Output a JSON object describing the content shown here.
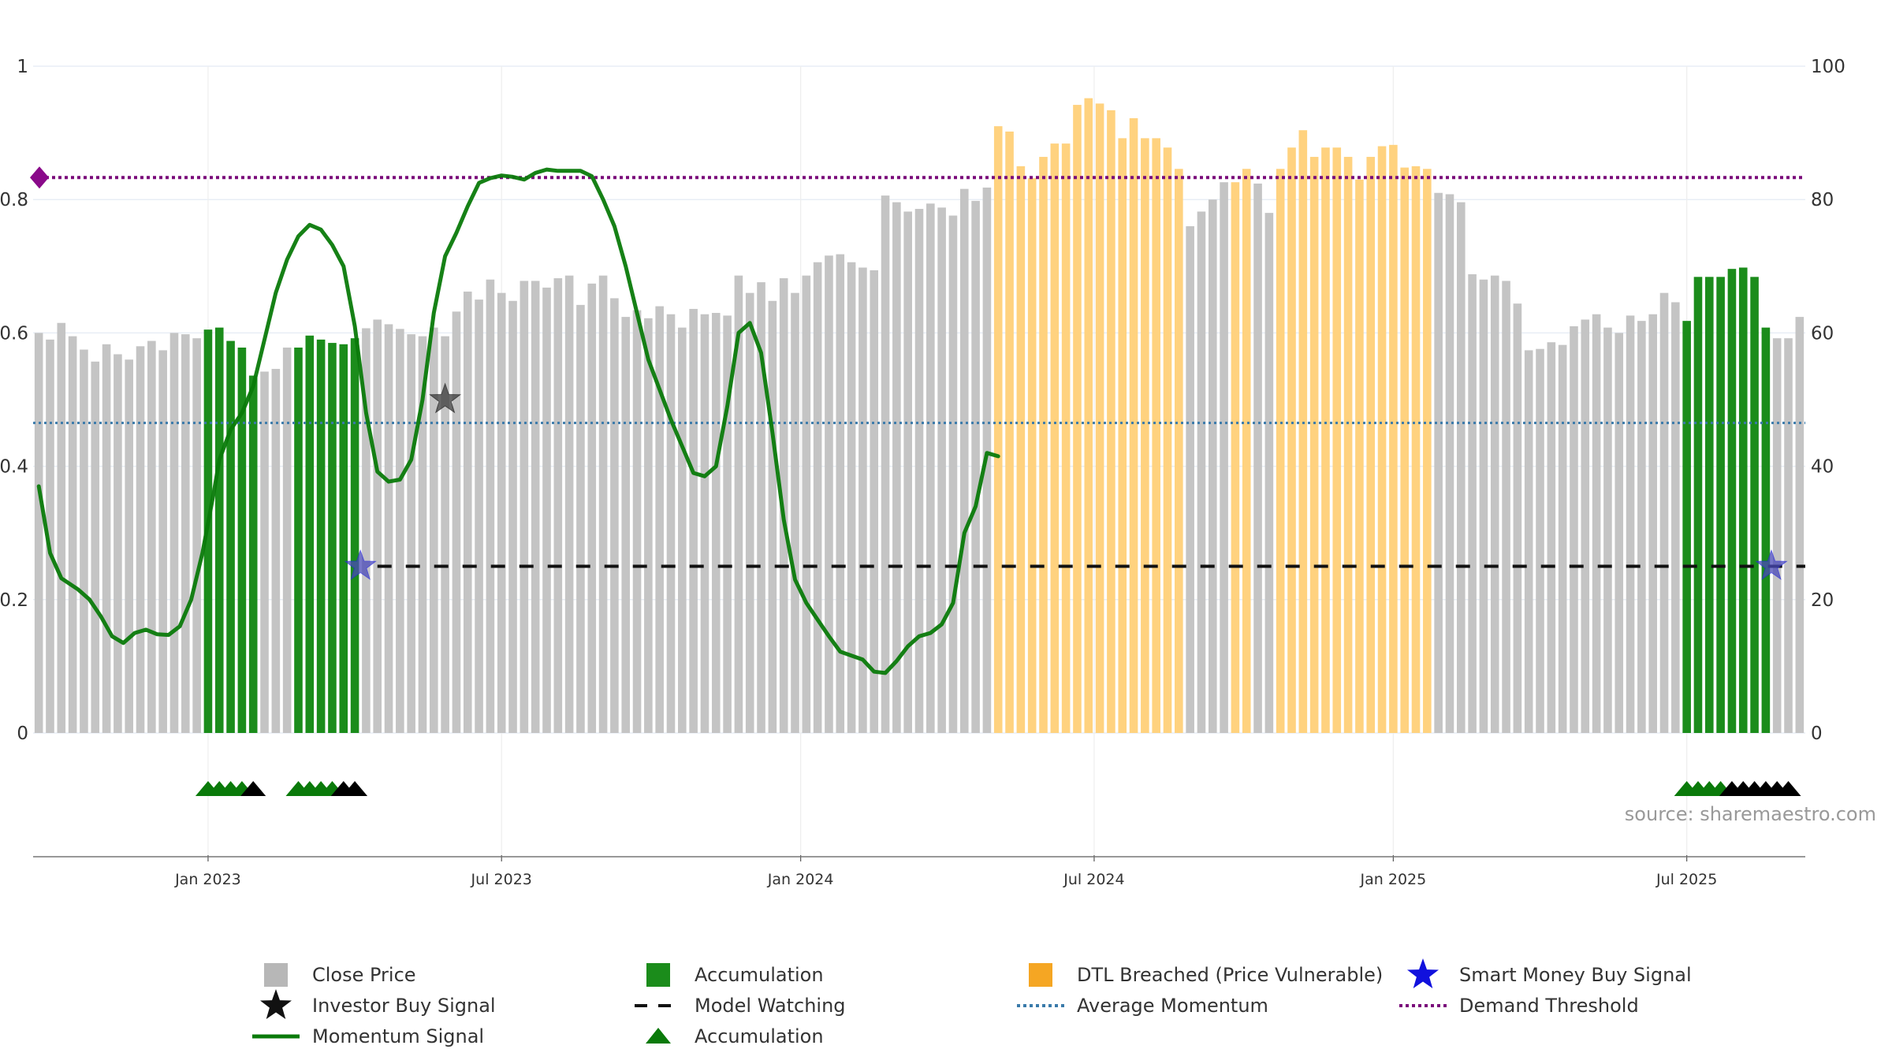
{
  "chart_data": {
    "type": "bar",
    "title": "",
    "source": "source: sharemaestro.com",
    "left_axis": {
      "ticks": [
        "0",
        "0.2",
        "0.4",
        "0.6",
        "0.8",
        "1"
      ],
      "range": [
        0,
        1
      ]
    },
    "right_axis": {
      "ticks": [
        "0",
        "20",
        "40",
        "60",
        "80",
        "100"
      ],
      "range": [
        0,
        100
      ]
    },
    "x_ticks": [
      {
        "label": "Jan 2023",
        "week": 15
      },
      {
        "label": "Jul 2023",
        "week": 41
      },
      {
        "label": "Jan 2024",
        "week": 67.5
      },
      {
        "label": "Jul 2024",
        "week": 93.5
      },
      {
        "label": "Jan 2025",
        "week": 120
      },
      {
        "label": "Jul 2025",
        "week": 146
      }
    ],
    "weeks": 157,
    "close_price": [
      60,
      59,
      61.5,
      59.5,
      57.5,
      55.7,
      58.3,
      56.8,
      56,
      58,
      58.8,
      57.4,
      60,
      59.8,
      59.2,
      60.5,
      60.8,
      58.8,
      57.8,
      53.6,
      54.2,
      54.6,
      57.8,
      57.8,
      59.6,
      59,
      58.5,
      58.3,
      59.2,
      60.7,
      62,
      61.3,
      60.6,
      59.8,
      59.5,
      60.8,
      59.5,
      63.2,
      66.2,
      65,
      68,
      66,
      64.8,
      67.8,
      67.8,
      66.8,
      68.2,
      68.6,
      64.2,
      67.4,
      68.6,
      65.2,
      62.4,
      63.4,
      62.2,
      64,
      62.8,
      60.8,
      63.6,
      62.8,
      63,
      62.6,
      68.6,
      66,
      67.6,
      64.8,
      68.2,
      66,
      68.6,
      70.6,
      71.6,
      71.8,
      70.6,
      69.8,
      69.4,
      80.6,
      79.6,
      78.2,
      78.6,
      79.4,
      78.8,
      77.6,
      81.6,
      79.8,
      81.8,
      91,
      90.2,
      85,
      83.2,
      86.4,
      88.4,
      88.4,
      94.2,
      95.2,
      94.4,
      93.4,
      89.2,
      92.2,
      89.2,
      89.2,
      87.8,
      84.6,
      76,
      78.2,
      80,
      82.6,
      82.6,
      84.6,
      82.4,
      78,
      84.6,
      87.8,
      90.4,
      86.4,
      87.8,
      87.8,
      86.4,
      83,
      86.4,
      88,
      88.2,
      84.8,
      85,
      84.6,
      81,
      80.8,
      79.6,
      68.8,
      68,
      68.6,
      67.8,
      64.4,
      57.4,
      57.6,
      58.6,
      58.2,
      61,
      62,
      62.8,
      60.8,
      60,
      62.6,
      61.8,
      62.8,
      66,
      64.6,
      61.8,
      68.4,
      68.4,
      68.4,
      69.6,
      69.8,
      68.4,
      60.8,
      59.2,
      59.2,
      62.4
    ],
    "bar_state_runs": [
      {
        "state": "accumulation",
        "from": 15,
        "to": 19
      },
      {
        "state": "accumulation",
        "from": 23,
        "to": 28
      },
      {
        "state": "dtl_breached",
        "from": 85,
        "to": 101
      },
      {
        "state": "dtl_breached",
        "from": 106,
        "to": 107
      },
      {
        "state": "dtl_breached",
        "from": 110,
        "to": 123
      },
      {
        "state": "accumulation",
        "from": 146,
        "to": 153
      }
    ],
    "momentum_signal": [
      [
        0,
        0.37
      ],
      [
        2,
        0.27
      ],
      [
        4,
        0.232
      ],
      [
        7,
        0.215
      ],
      [
        9,
        0.2
      ],
      [
        11,
        0.175
      ],
      [
        13,
        0.145
      ],
      [
        15,
        0.135
      ],
      [
        17,
        0.15
      ],
      [
        19,
        0.155
      ],
      [
        21,
        0.148
      ],
      [
        23,
        0.147
      ],
      [
        25,
        0.16
      ],
      [
        27,
        0.2
      ],
      [
        29,
        0.27
      ],
      [
        31,
        0.36
      ],
      [
        32,
        0.41
      ],
      [
        34,
        0.455
      ],
      [
        36,
        0.48
      ],
      [
        38,
        0.52
      ],
      [
        40,
        0.59
      ],
      [
        42,
        0.66
      ],
      [
        44,
        0.71
      ],
      [
        46,
        0.745
      ],
      [
        48,
        0.762
      ],
      [
        50,
        0.755
      ],
      [
        52,
        0.732
      ],
      [
        54,
        0.7
      ],
      [
        56,
        0.61
      ],
      [
        58,
        0.48
      ],
      [
        60,
        0.392
      ],
      [
        62,
        0.377
      ],
      [
        64,
        0.38
      ],
      [
        66,
        0.41
      ],
      [
        68,
        0.5
      ],
      [
        70,
        0.63
      ],
      [
        72,
        0.715
      ],
      [
        74,
        0.75
      ],
      [
        76,
        0.79
      ],
      [
        78,
        0.825
      ],
      [
        80,
        0.832
      ],
      [
        82,
        0.836
      ],
      [
        84,
        0.834
      ],
      [
        86,
        0.83
      ],
      [
        88,
        0.84
      ],
      [
        90,
        0.845
      ],
      [
        92,
        0.843
      ],
      [
        94,
        0.843
      ],
      [
        96,
        0.843
      ],
      [
        98,
        0.835
      ],
      [
        100,
        0.8
      ],
      [
        102,
        0.76
      ],
      [
        104,
        0.7
      ],
      [
        106,
        0.63
      ],
      [
        108,
        0.56
      ],
      [
        110,
        0.515
      ],
      [
        112,
        0.47
      ],
      [
        114,
        0.43
      ],
      [
        116,
        0.39
      ],
      [
        118,
        0.385
      ],
      [
        120,
        0.4
      ],
      [
        122,
        0.49
      ],
      [
        124,
        0.6
      ],
      [
        126,
        0.615
      ],
      [
        128,
        0.57
      ],
      [
        130,
        0.45
      ],
      [
        132,
        0.32
      ],
      [
        134,
        0.23
      ],
      [
        136,
        0.195
      ],
      [
        138,
        0.17
      ],
      [
        140,
        0.145
      ],
      [
        142,
        0.122
      ],
      [
        144,
        0.116
      ],
      [
        146,
        0.11
      ],
      [
        148,
        0.092
      ],
      [
        150,
        0.09
      ],
      [
        152,
        0.108
      ],
      [
        154,
        0.13
      ],
      [
        156,
        0.145
      ],
      [
        158,
        0.15
      ],
      [
        160,
        0.163
      ],
      [
        162,
        0.195
      ],
      [
        164,
        0.3
      ],
      [
        166,
        0.34
      ],
      [
        168,
        0.42
      ],
      [
        170,
        0.415
      ]
    ],
    "momentum_x_scale": 0.5,
    "average_momentum": 0.465,
    "demand_threshold": 0.833,
    "model_watching": {
      "level": 0.25,
      "from_week": 30,
      "to_week": 157
    },
    "investor_buy_signals": [
      {
        "week": 36,
        "value": 0.5
      }
    ],
    "smart_money_buy_signals": [
      {
        "week": 28.5,
        "value": 0.25
      },
      {
        "week": 153.5,
        "value": 0.25
      }
    ],
    "accumulation_markers": {
      "green": [
        15,
        16,
        17,
        18,
        23,
        24,
        25,
        26,
        146,
        147,
        148,
        149
      ],
      "black": [
        19,
        27,
        28,
        150,
        151,
        152,
        153,
        154,
        155
      ]
    },
    "colors": {
      "close_price": "#c4c4c4",
      "accumulation": "#1b8c1b",
      "dtl_breached": "#ffd27f",
      "momentum": "#0a7a0a",
      "average_momentum": "#3a7aaa",
      "demand_threshold": "#7a0a7a",
      "model_watching": "#111111",
      "smart_money": "#1a1ad8",
      "investor": "#111111"
    },
    "legend": [
      {
        "label": "Close Price",
        "symbol": "square",
        "color": "#b7b7b7"
      },
      {
        "label": "Accumulation",
        "symbol": "square",
        "color": "#1b8c1b"
      },
      {
        "label": "DTL Breached (Price Vulnerable)",
        "symbol": "square",
        "color": "#f5a623"
      },
      {
        "label": "Smart Money Buy Signal",
        "symbol": "star",
        "color": "#1111dd"
      },
      {
        "label": "Investor Buy Signal",
        "symbol": "star",
        "color": "#111111"
      },
      {
        "label": "Model Watching",
        "symbol": "dash",
        "color": "#111111"
      },
      {
        "label": "Average Momentum",
        "symbol": "dot",
        "color": "#3a7aaa"
      },
      {
        "label": "Demand Threshold",
        "symbol": "dot",
        "color": "#7a0a7a"
      },
      {
        "label": "Momentum Signal",
        "symbol": "line",
        "color": "#0a7a0a"
      },
      {
        "label": "Accumulation",
        "symbol": "triangle",
        "color": "#0a7a0a"
      }
    ]
  }
}
